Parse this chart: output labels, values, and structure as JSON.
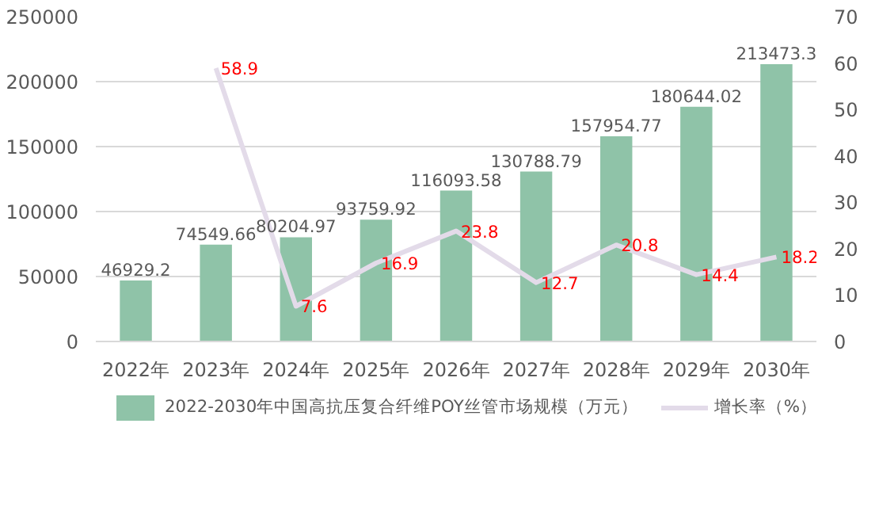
{
  "chart_data": {
    "type": "bar",
    "categories": [
      "2022年",
      "2023年",
      "2024年",
      "2025年",
      "2026年",
      "2027年",
      "2028年",
      "2029年",
      "2030年"
    ],
    "series": [
      {
        "name": "2022-2030年中国高抗压复合纤维POY丝管市场规模（万元）",
        "color": "#8fc3a8",
        "values": [
          46929.2,
          74549.66,
          80204.97,
          93759.92,
          116093.58,
          130788.79,
          157954.77,
          180644.02,
          213473.3
        ]
      },
      {
        "name": "增长率（%）",
        "type": "line",
        "axis": "y2",
        "color": "#e3dbe9",
        "values": [
          null,
          58.9,
          7.6,
          16.9,
          23.8,
          12.7,
          20.8,
          14.4,
          18.2
        ]
      }
    ],
    "ylim": [
      0,
      250000
    ],
    "yticks": [
      0,
      50000,
      100000,
      150000,
      200000,
      250000
    ],
    "y2lim": [
      0,
      70
    ],
    "y2ticks": [
      0,
      10,
      20,
      30,
      40,
      50,
      60,
      70
    ],
    "grid": "y",
    "legend": "bottom",
    "data_labels": true,
    "marker": "none"
  }
}
